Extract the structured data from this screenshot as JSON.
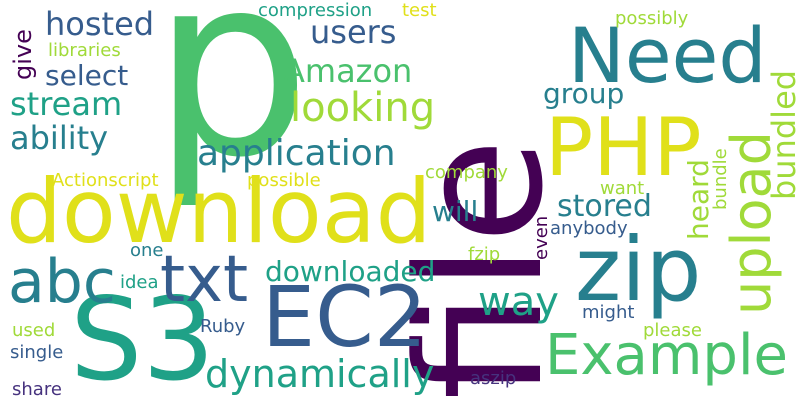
{
  "colors": {
    "background": "#ffffff",
    "dark_purple": "#440154",
    "indigo": "#46327e",
    "blue": "#365c8d",
    "teal_blue": "#277f8e",
    "teal": "#1fa187",
    "green": "#4ac16d",
    "lime": "#a0da39",
    "yellow": "#e0e01a"
  },
  "words": [
    "file",
    "p",
    "download",
    "S3",
    "zip",
    "EC2",
    "Need",
    "PHP",
    "upload",
    "abc",
    "txt",
    "Example",
    "way",
    "dynamically",
    "application",
    "looking",
    "Amazon",
    "stream",
    "downloaded",
    "hosted",
    "users",
    "select",
    "ability",
    "bundled",
    "stored",
    "will",
    "group",
    "heard",
    "give",
    "libraries",
    "compression",
    "test",
    "possibly",
    "Actionscript",
    "possible",
    "company",
    "want",
    "bundle",
    "anybody",
    "even",
    "fzip",
    "one",
    "idea",
    "might",
    "please",
    "used",
    "Ruby",
    "single",
    "share",
    "aszip"
  ]
}
